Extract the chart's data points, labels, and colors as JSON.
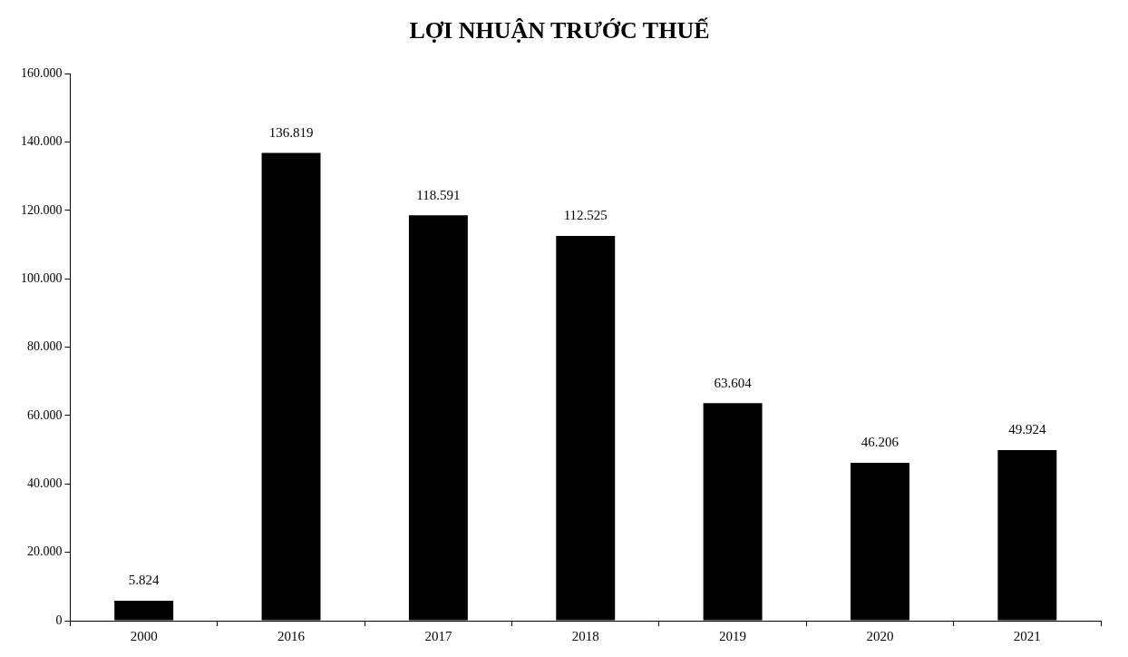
{
  "chart_data": {
    "type": "bar",
    "title": "LỢI NHUẬN TRƯỚC THUẾ",
    "categories": [
      "2000",
      "2016",
      "2017",
      "2018",
      "2019",
      "2020",
      "2021"
    ],
    "values": [
      5824,
      136819,
      118591,
      112525,
      63604,
      46206,
      49924
    ],
    "value_labels": [
      "5.824",
      "136.819",
      "118.591",
      "112.525",
      "63.604",
      "46.206",
      "49.924"
    ],
    "color": "#000000",
    "ylim": [
      0,
      160000
    ],
    "yticks": [
      {
        "value": 0,
        "label": "0"
      },
      {
        "value": 20000,
        "label": "20.000"
      },
      {
        "value": 40000,
        "label": "40.000"
      },
      {
        "value": 60000,
        "label": "60.000"
      },
      {
        "value": 80000,
        "label": "80.000"
      },
      {
        "value": 100000,
        "label": "100.000"
      },
      {
        "value": 120000,
        "label": "120.000"
      },
      {
        "value": 140000,
        "label": "140.000"
      },
      {
        "value": 160000,
        "label": "160.000"
      }
    ],
    "grid": false,
    "legend": false
  }
}
